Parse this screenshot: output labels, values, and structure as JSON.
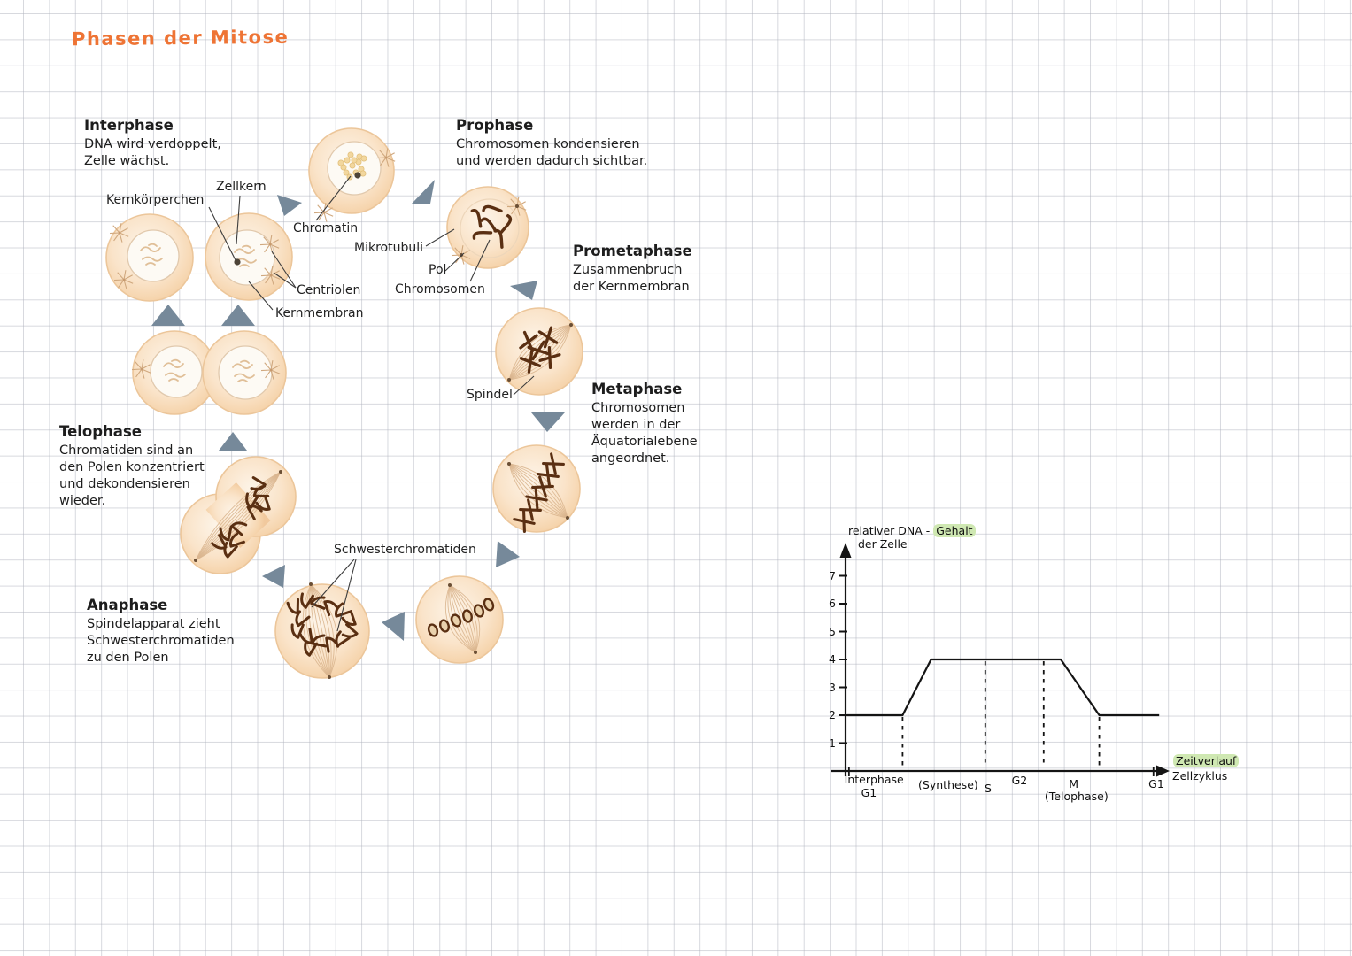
{
  "page": {
    "title": "Phasen der Mitose"
  },
  "phases": {
    "interphase": {
      "title": "Interphase",
      "desc": "DNA wird verdoppelt,\nZelle wächst."
    },
    "prophase": {
      "title": "Prophase",
      "desc": "Chromosomen kondensieren\nund werden dadurch sichtbar."
    },
    "prometaphase": {
      "title": "Prometaphase",
      "desc": "Zusammenbruch\nder Kernmembran"
    },
    "metaphase": {
      "title": "Metaphase",
      "desc": "Chromosomen\nwerden in der\nÄquatorialebene\nangeordnet."
    },
    "anaphase": {
      "title": "Anaphase",
      "desc": "Spindelapparat zieht\nSchwesterchromatiden\nzu den Polen"
    },
    "telophase": {
      "title": "Telophase",
      "desc": "Chromatiden sind an\nden Polen konzentriert\nund dekondensieren\nwieder."
    }
  },
  "cell_labels": {
    "kernkoerperchen": "Kernkörperchen",
    "zellkern": "Zellkern",
    "chromatin": "Chromatin",
    "mikrotubuli": "Mikrotubuli",
    "pol": "Pol",
    "chromosomen": "Chromosomen",
    "centriolen": "Centriolen",
    "kernmembran": "Kernmembran",
    "spindel": "Spindel",
    "schwesterchromatiden": "Schwesterchromatiden"
  },
  "chart_data": {
    "type": "line",
    "labels": {
      "y1_prefix": "relativer  DNA - ",
      "y1_hl": "Gehalt",
      "y2": "der  Zelle",
      "x1_hl": "Zeitverlauf",
      "x2": "Zellzyklus"
    },
    "yticks": [
      1,
      2,
      3,
      4,
      5,
      6,
      7
    ],
    "ylim": [
      0,
      7.5
    ],
    "xlim": [
      0,
      11.3
    ],
    "points": [
      {
        "x": 0.05,
        "y": 2
      },
      {
        "x": 2.0,
        "y": 2
      },
      {
        "x": 3.0,
        "y": 4
      },
      {
        "x": 7.55,
        "y": 4
      },
      {
        "x": 8.9,
        "y": 2
      },
      {
        "x": 11.0,
        "y": 2
      }
    ],
    "dashed": [
      {
        "x": 2.0,
        "y": 2
      },
      {
        "x": 4.9,
        "y": 4
      },
      {
        "x": 6.95,
        "y": 4
      },
      {
        "x": 8.9,
        "y": 2
      }
    ],
    "xticks": [
      0.12,
      10.8
    ],
    "x_phase_labels": [
      {
        "label": "Interphase",
        "x": 1.0,
        "dy": 2
      },
      {
        "label": "G1",
        "x": 0.82,
        "dy": 17
      },
      {
        "label": "(Synthese)",
        "x": 3.6,
        "dy": 8
      },
      {
        "label": "S",
        "x": 5.0,
        "dy": 12
      },
      {
        "label": "G2",
        "x": 6.1,
        "dy": 3
      },
      {
        "label": "M",
        "x": 8.0,
        "dy": 7
      },
      {
        "label": "(Telophase)",
        "x": 8.1,
        "dy": 21
      },
      {
        "label": "G1",
        "x": 10.9,
        "dy": 7
      }
    ]
  },
  "colors": {
    "accent_orange": "#ee7435",
    "highlight_green": "#cfe8b2",
    "arrow_gray": "#76899a",
    "cell_fill": "#f8dfc2",
    "chromosome_brown": "#5a2f12",
    "ink": "#141414"
  }
}
